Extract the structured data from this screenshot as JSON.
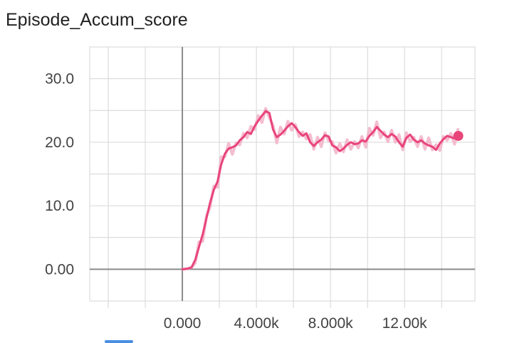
{
  "chart_data": {
    "type": "line",
    "title": "Episode_Accum_score",
    "xlabel": "",
    "ylabel": "",
    "xlim": [
      -5000,
      15800
    ],
    "ylim": [
      -5,
      35
    ],
    "grid": true,
    "x_ticks": [
      0,
      4000,
      8000,
      12000
    ],
    "x_tick_labels": [
      "0.000",
      "4.000k",
      "8.000k",
      "12.00k"
    ],
    "y_ticks": [
      0,
      10,
      20,
      30
    ],
    "y_tick_labels": [
      "0.00",
      "10.0",
      "20.0",
      "30.0"
    ],
    "colors": {
      "smoothed": "#e8457a",
      "raw": "#f3b6cb"
    },
    "series": [
      {
        "values_x": [
          0,
          300,
          500,
          700,
          900,
          1100,
          1300,
          1500,
          1700,
          1900,
          2100,
          2300,
          2500,
          2700,
          2900,
          3100,
          3300,
          3500,
          3700,
          3900,
          4100,
          4300,
          4500,
          4700,
          4900,
          5100,
          5300,
          5500,
          5700,
          5900,
          6100,
          6300,
          6500,
          6700,
          6900,
          7100,
          7300,
          7500,
          7700,
          7900,
          8100,
          8300,
          8500,
          8700,
          8900,
          9100,
          9300,
          9500,
          9700,
          9900,
          10100,
          10300,
          10500,
          10700,
          10900,
          11100,
          11300,
          11500,
          11700,
          11900,
          12100,
          12300,
          12500,
          12700,
          12900,
          13100,
          13300,
          13500,
          13700,
          13900,
          14100,
          14300,
          14500,
          14700,
          14900
        ],
        "values_y": [
          0.0,
          0.1,
          0.3,
          1.5,
          3.5,
          5.5,
          8.0,
          10.5,
          12.5,
          13.8,
          16.5,
          18.2,
          19.0,
          19.2,
          19.5,
          20.3,
          20.8,
          21.6,
          21.3,
          22.5,
          23.4,
          24.2,
          24.9,
          24.6,
          22.0,
          20.8,
          21.2,
          21.8,
          22.5,
          23.0,
          22.4,
          21.6,
          21.0,
          21.4,
          20.0,
          19.4,
          20.0,
          20.4,
          21.1,
          20.9,
          19.5,
          19.2,
          18.6,
          19.0,
          19.6,
          20.0,
          19.7,
          19.8,
          20.3,
          20.1,
          21.0,
          21.6,
          22.4,
          21.8,
          21.2,
          20.8,
          21.3,
          20.9,
          20.0,
          19.3,
          20.7,
          21.2,
          20.4,
          20.0,
          20.3,
          19.8,
          19.5,
          19.3,
          18.8,
          19.8,
          20.5,
          21.0,
          20.8,
          20.6,
          21.0
        ]
      }
    ],
    "last_point": {
      "x": 14900,
      "y": 21.0
    }
  }
}
